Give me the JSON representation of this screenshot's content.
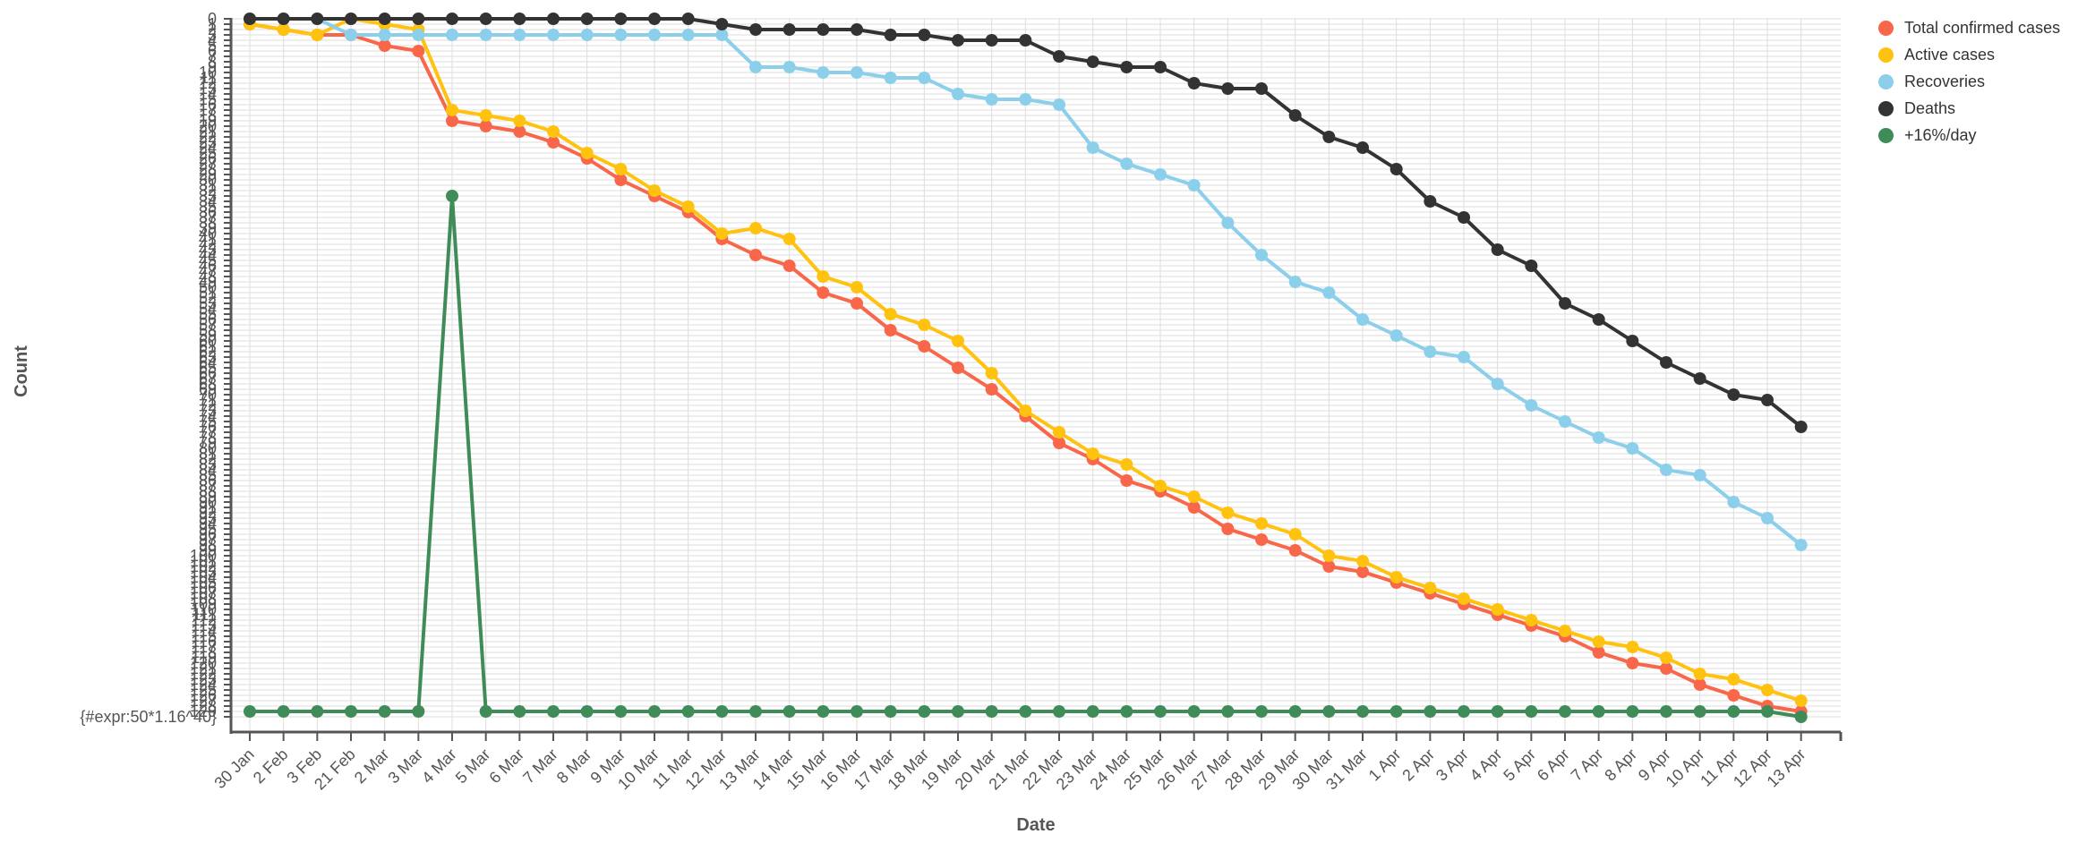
{
  "chart_data": {
    "type": "line",
    "xlabel": "Date",
    "ylabel": "Count",
    "categories": [
      "30 Jan",
      "2 Feb",
      "3 Feb",
      "21 Feb",
      "2 Mar",
      "3 Mar",
      "4 Mar",
      "5 Mar",
      "6 Mar",
      "7 Mar",
      "8 Mar",
      "9 Mar",
      "10 Mar",
      "11 Mar",
      "12 Mar",
      "13 Mar",
      "14 Mar",
      "15 Mar",
      "16 Mar",
      "17 Mar",
      "18 Mar",
      "19 Mar",
      "20 Mar",
      "21 Mar",
      "22 Mar",
      "23 Mar",
      "24 Mar",
      "25 Mar",
      "26 Mar",
      "27 Mar",
      "28 Mar",
      "29 Mar",
      "30 Mar",
      "31 Mar",
      "1 Apr",
      "2 Apr",
      "3 Apr",
      "4 Apr",
      "5 Apr",
      "6 Apr",
      "7 Apr",
      "8 Apr",
      "9 Apr",
      "10 Apr",
      "11 Apr",
      "12 Apr",
      "13 Apr"
    ],
    "y_tick_labels": [
      "0",
      "1",
      "2",
      "3",
      "4",
      "5",
      "6",
      "7",
      "8",
      "9",
      "10",
      "11",
      "12",
      "13",
      "14",
      "15",
      "16",
      "17",
      "18",
      "19",
      "20",
      "21",
      "22",
      "23",
      "24",
      "25",
      "26",
      "27",
      "28",
      "29",
      "30",
      "31",
      "32",
      "33",
      "34",
      "35",
      "36",
      "37",
      "38",
      "39",
      "40",
      "41",
      "42",
      "43",
      "44",
      "45",
      "46",
      "47",
      "48",
      "49",
      "50",
      "51",
      "52",
      "53",
      "54",
      "55",
      "56",
      "57",
      "58",
      "59",
      "60",
      "61",
      "62",
      "63",
      "64",
      "65",
      "66",
      "67",
      "68",
      "69",
      "70",
      "71",
      "72",
      "73",
      "74",
      "75",
      "76",
      "77",
      "78",
      "79",
      "80",
      "81",
      "82",
      "83",
      "84",
      "85",
      "86",
      "87",
      "88",
      "89",
      "90",
      "91",
      "92",
      "93",
      "94",
      "95",
      "96",
      "97",
      "98",
      "99",
      "100",
      "101",
      "102",
      "103",
      "104",
      "105",
      "106",
      "107",
      "108",
      "109",
      "110",
      "111",
      "112",
      "113",
      "114",
      "115",
      "116",
      "117",
      "118",
      "119",
      "120",
      "121",
      "122",
      "123",
      "124",
      "125",
      "126",
      "127",
      "128",
      "129",
      "{#expr:50*1.16^40}"
    ],
    "y_axis_note": "categorical y axis ordered by value; the last tick is an unrendered template expression",
    "grid": true,
    "legend_position": "top-right",
    "series": [
      {
        "name": "Total confirmed cases",
        "color": "#f8674a",
        "y_index": [
          1,
          2,
          3,
          3,
          5,
          6,
          19,
          20,
          21,
          23,
          26,
          30,
          33,
          36,
          41,
          44,
          46,
          51,
          53,
          58,
          61,
          65,
          69,
          74,
          79,
          82,
          86,
          88,
          91,
          95,
          97,
          99,
          102,
          103,
          105,
          107,
          109,
          111,
          113,
          115,
          118,
          120,
          121,
          124,
          126,
          128,
          129
        ]
      },
      {
        "name": "Active cases",
        "color": "#fec20f",
        "y_index": [
          1,
          2,
          3,
          0,
          1,
          2,
          17,
          18,
          19,
          21,
          25,
          28,
          32,
          35,
          40,
          39,
          41,
          48,
          50,
          55,
          57,
          60,
          66,
          73,
          77,
          81,
          83,
          87,
          89,
          92,
          94,
          96,
          100,
          101,
          104,
          106,
          108,
          110,
          112,
          114,
          116,
          117,
          119,
          122,
          123,
          125,
          127
        ]
      },
      {
        "name": "Recoveries",
        "color": "#8ccfea",
        "y_index": [
          0,
          0,
          0,
          3,
          3,
          3,
          3,
          3,
          3,
          3,
          3,
          3,
          3,
          3,
          3,
          9,
          9,
          10,
          10,
          11,
          11,
          14,
          15,
          15,
          16,
          24,
          27,
          29,
          31,
          38,
          44,
          49,
          51,
          56,
          59,
          62,
          63,
          68,
          72,
          75,
          78,
          80,
          84,
          85,
          90,
          93,
          98
        ]
      },
      {
        "name": "Deaths",
        "color": "#333333",
        "y_index": [
          0,
          0,
          0,
          0,
          0,
          0,
          0,
          0,
          0,
          0,
          0,
          0,
          0,
          0,
          1,
          2,
          2,
          2,
          2,
          3,
          3,
          4,
          4,
          4,
          7,
          8,
          9,
          9,
          12,
          13,
          13,
          18,
          22,
          24,
          28,
          34,
          37,
          43,
          46,
          53,
          56,
          60,
          64,
          67,
          70,
          71,
          76
        ]
      },
      {
        "name": "+16%/day",
        "color": "#3f8c58",
        "y_index": [
          129,
          129,
          129,
          129,
          129,
          129,
          33,
          129,
          129,
          129,
          129,
          129,
          129,
          129,
          129,
          129,
          129,
          129,
          129,
          129,
          129,
          129,
          129,
          129,
          129,
          129,
          129,
          129,
          129,
          129,
          129,
          129,
          129,
          129,
          129,
          129,
          129,
          129,
          129,
          129,
          129,
          129,
          129,
          129,
          129,
          129,
          130
        ]
      }
    ]
  }
}
